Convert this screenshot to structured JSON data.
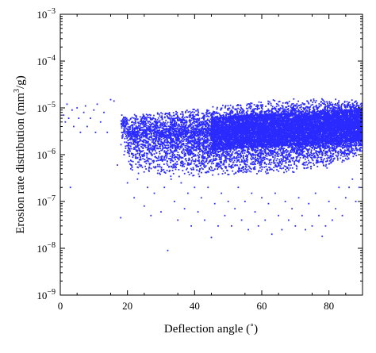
{
  "chart_data": {
    "type": "scatter",
    "title": "",
    "xlabel": "Deflection angle (˚)",
    "ylabel": "Erosion rate distribution (mm³/g)",
    "ylabel_parts": {
      "before": "Erosion rate distribution (mm",
      "sup": "3",
      "after": "/g)"
    },
    "xlim": [
      0,
      90
    ],
    "ylim": [
      1e-09,
      0.001
    ],
    "yscale": "log",
    "grid": false,
    "legend": "none",
    "marker_color": "#2b2bff",
    "x_ticks": [
      0,
      20,
      40,
      60,
      80
    ],
    "x_tick_labels": [
      "0",
      "20",
      "40",
      "60",
      "80"
    ],
    "y_ticks": [
      1e-09,
      1e-08,
      1e-07,
      1e-06,
      1e-05,
      0.0001,
      0.001
    ],
    "y_tick_labels": [
      {
        "base": "10",
        "exp": "−9"
      },
      {
        "base": "10",
        "exp": "−8"
      },
      {
        "base": "10",
        "exp": "−7"
      },
      {
        "base": "10",
        "exp": "−6"
      },
      {
        "base": "10",
        "exp": "−5"
      },
      {
        "base": "10",
        "exp": "−4"
      },
      {
        "base": "10",
        "exp": "−3"
      }
    ],
    "series": [
      {
        "points": [
          [
            1,
            7e-06
          ],
          [
            1.5,
            5e-06
          ],
          [
            2,
            1.2e-05
          ],
          [
            2.5,
            6e-06
          ],
          [
            3,
            2e-07
          ],
          [
            3.5,
            9e-06
          ],
          [
            4,
            4e-06
          ],
          [
            5,
            1e-05
          ],
          [
            5.5,
            6e-06
          ],
          [
            6,
            3e-06
          ],
          [
            7,
            8e-06
          ],
          [
            7.5,
            1.1e-05
          ],
          [
            8,
            4e-06
          ],
          [
            9,
            6e-06
          ],
          [
            10,
            9e-06
          ],
          [
            10.5,
            3e-06
          ],
          [
            11,
            1.2e-05
          ],
          [
            12,
            5e-06
          ],
          [
            13,
            8e-06
          ],
          [
            14,
            3e-06
          ],
          [
            15,
            1.5e-05
          ],
          [
            16,
            1.4e-05
          ],
          [
            17,
            6e-07
          ],
          [
            18,
            4.5e-08
          ],
          [
            18.5,
            5e-06
          ],
          [
            19,
            1e-06
          ],
          [
            20,
            2.5e-07
          ],
          [
            21,
            5e-07
          ],
          [
            22,
            1.2e-07
          ],
          [
            23,
            3e-07
          ],
          [
            24,
            6e-07
          ],
          [
            25,
            8e-08
          ],
          [
            26,
            2e-07
          ],
          [
            27,
            5e-08
          ],
          [
            28,
            1.5e-07
          ],
          [
            29,
            4e-07
          ],
          [
            30,
            6e-08
          ],
          [
            31,
            2e-07
          ],
          [
            32,
            9e-09
          ],
          [
            33,
            3e-07
          ],
          [
            34,
            1e-07
          ],
          [
            35,
            4e-08
          ],
          [
            36,
            2.5e-07
          ],
          [
            37,
            7e-08
          ],
          [
            38,
            1.5e-07
          ],
          [
            39,
            3e-08
          ],
          [
            40,
            2e-07
          ],
          [
            41,
            6e-08
          ],
          [
            42,
            1.2e-07
          ],
          [
            43,
            4e-08
          ],
          [
            44,
            2e-07
          ],
          [
            45,
            1.7e-08
          ],
          [
            46,
            9e-08
          ],
          [
            47,
            3e-08
          ],
          [
            48,
            1.5e-07
          ],
          [
            49,
            5e-08
          ],
          [
            50,
            1e-07
          ],
          [
            51,
            3e-08
          ],
          [
            52,
            7e-08
          ],
          [
            53,
            2e-07
          ],
          [
            54,
            4e-08
          ],
          [
            55,
            1e-07
          ],
          [
            56,
            2.5e-08
          ],
          [
            57,
            1.5e-07
          ],
          [
            58,
            6e-08
          ],
          [
            59,
            3e-08
          ],
          [
            60,
            1.2e-07
          ],
          [
            61,
            4e-08
          ],
          [
            62,
            9e-08
          ],
          [
            63,
            2e-08
          ],
          [
            64,
            1.5e-07
          ],
          [
            65,
            5e-08
          ],
          [
            66,
            2.5e-08
          ],
          [
            67,
            1e-07
          ],
          [
            68,
            4e-08
          ],
          [
            69,
            7e-08
          ],
          [
            70,
            3e-08
          ],
          [
            71,
            1.2e-07
          ],
          [
            72,
            5e-08
          ],
          [
            73,
            2.5e-08
          ],
          [
            74,
            9e-08
          ],
          [
            75,
            3e-08
          ],
          [
            76,
            1.5e-07
          ],
          [
            77,
            5e-08
          ],
          [
            78,
            1.8e-08
          ],
          [
            79,
            3e-08
          ],
          [
            80,
            1e-07
          ],
          [
            81,
            4e-08
          ],
          [
            82,
            7e-08
          ],
          [
            83,
            2e-07
          ],
          [
            84,
            5e-08
          ],
          [
            85,
            1.2e-07
          ],
          [
            86,
            2e-07
          ],
          [
            87,
            3e-07
          ],
          [
            88,
            1e-07
          ],
          [
            89,
            2e-07
          ]
        ]
      }
    ],
    "dense_region": {
      "x_range": [
        18,
        90
      ],
      "upper_edge": [
        [
          18,
          7e-06
        ],
        [
          30,
          9e-06
        ],
        [
          50,
          1.2e-05
        ],
        [
          70,
          1.7e-05
        ],
        [
          90,
          1.5e-05
        ]
      ],
      "core_center": [
        [
          20,
          2.5e-06
        ],
        [
          40,
          2.5e-06
        ],
        [
          60,
          3e-06
        ],
        [
          80,
          3.5e-06
        ],
        [
          90,
          4e-06
        ]
      ],
      "lower_edge": [
        [
          20,
          4e-07
        ],
        [
          40,
          3e-07
        ],
        [
          60,
          3.5e-07
        ],
        [
          80,
          5e-07
        ],
        [
          90,
          1e-06
        ]
      ]
    }
  }
}
